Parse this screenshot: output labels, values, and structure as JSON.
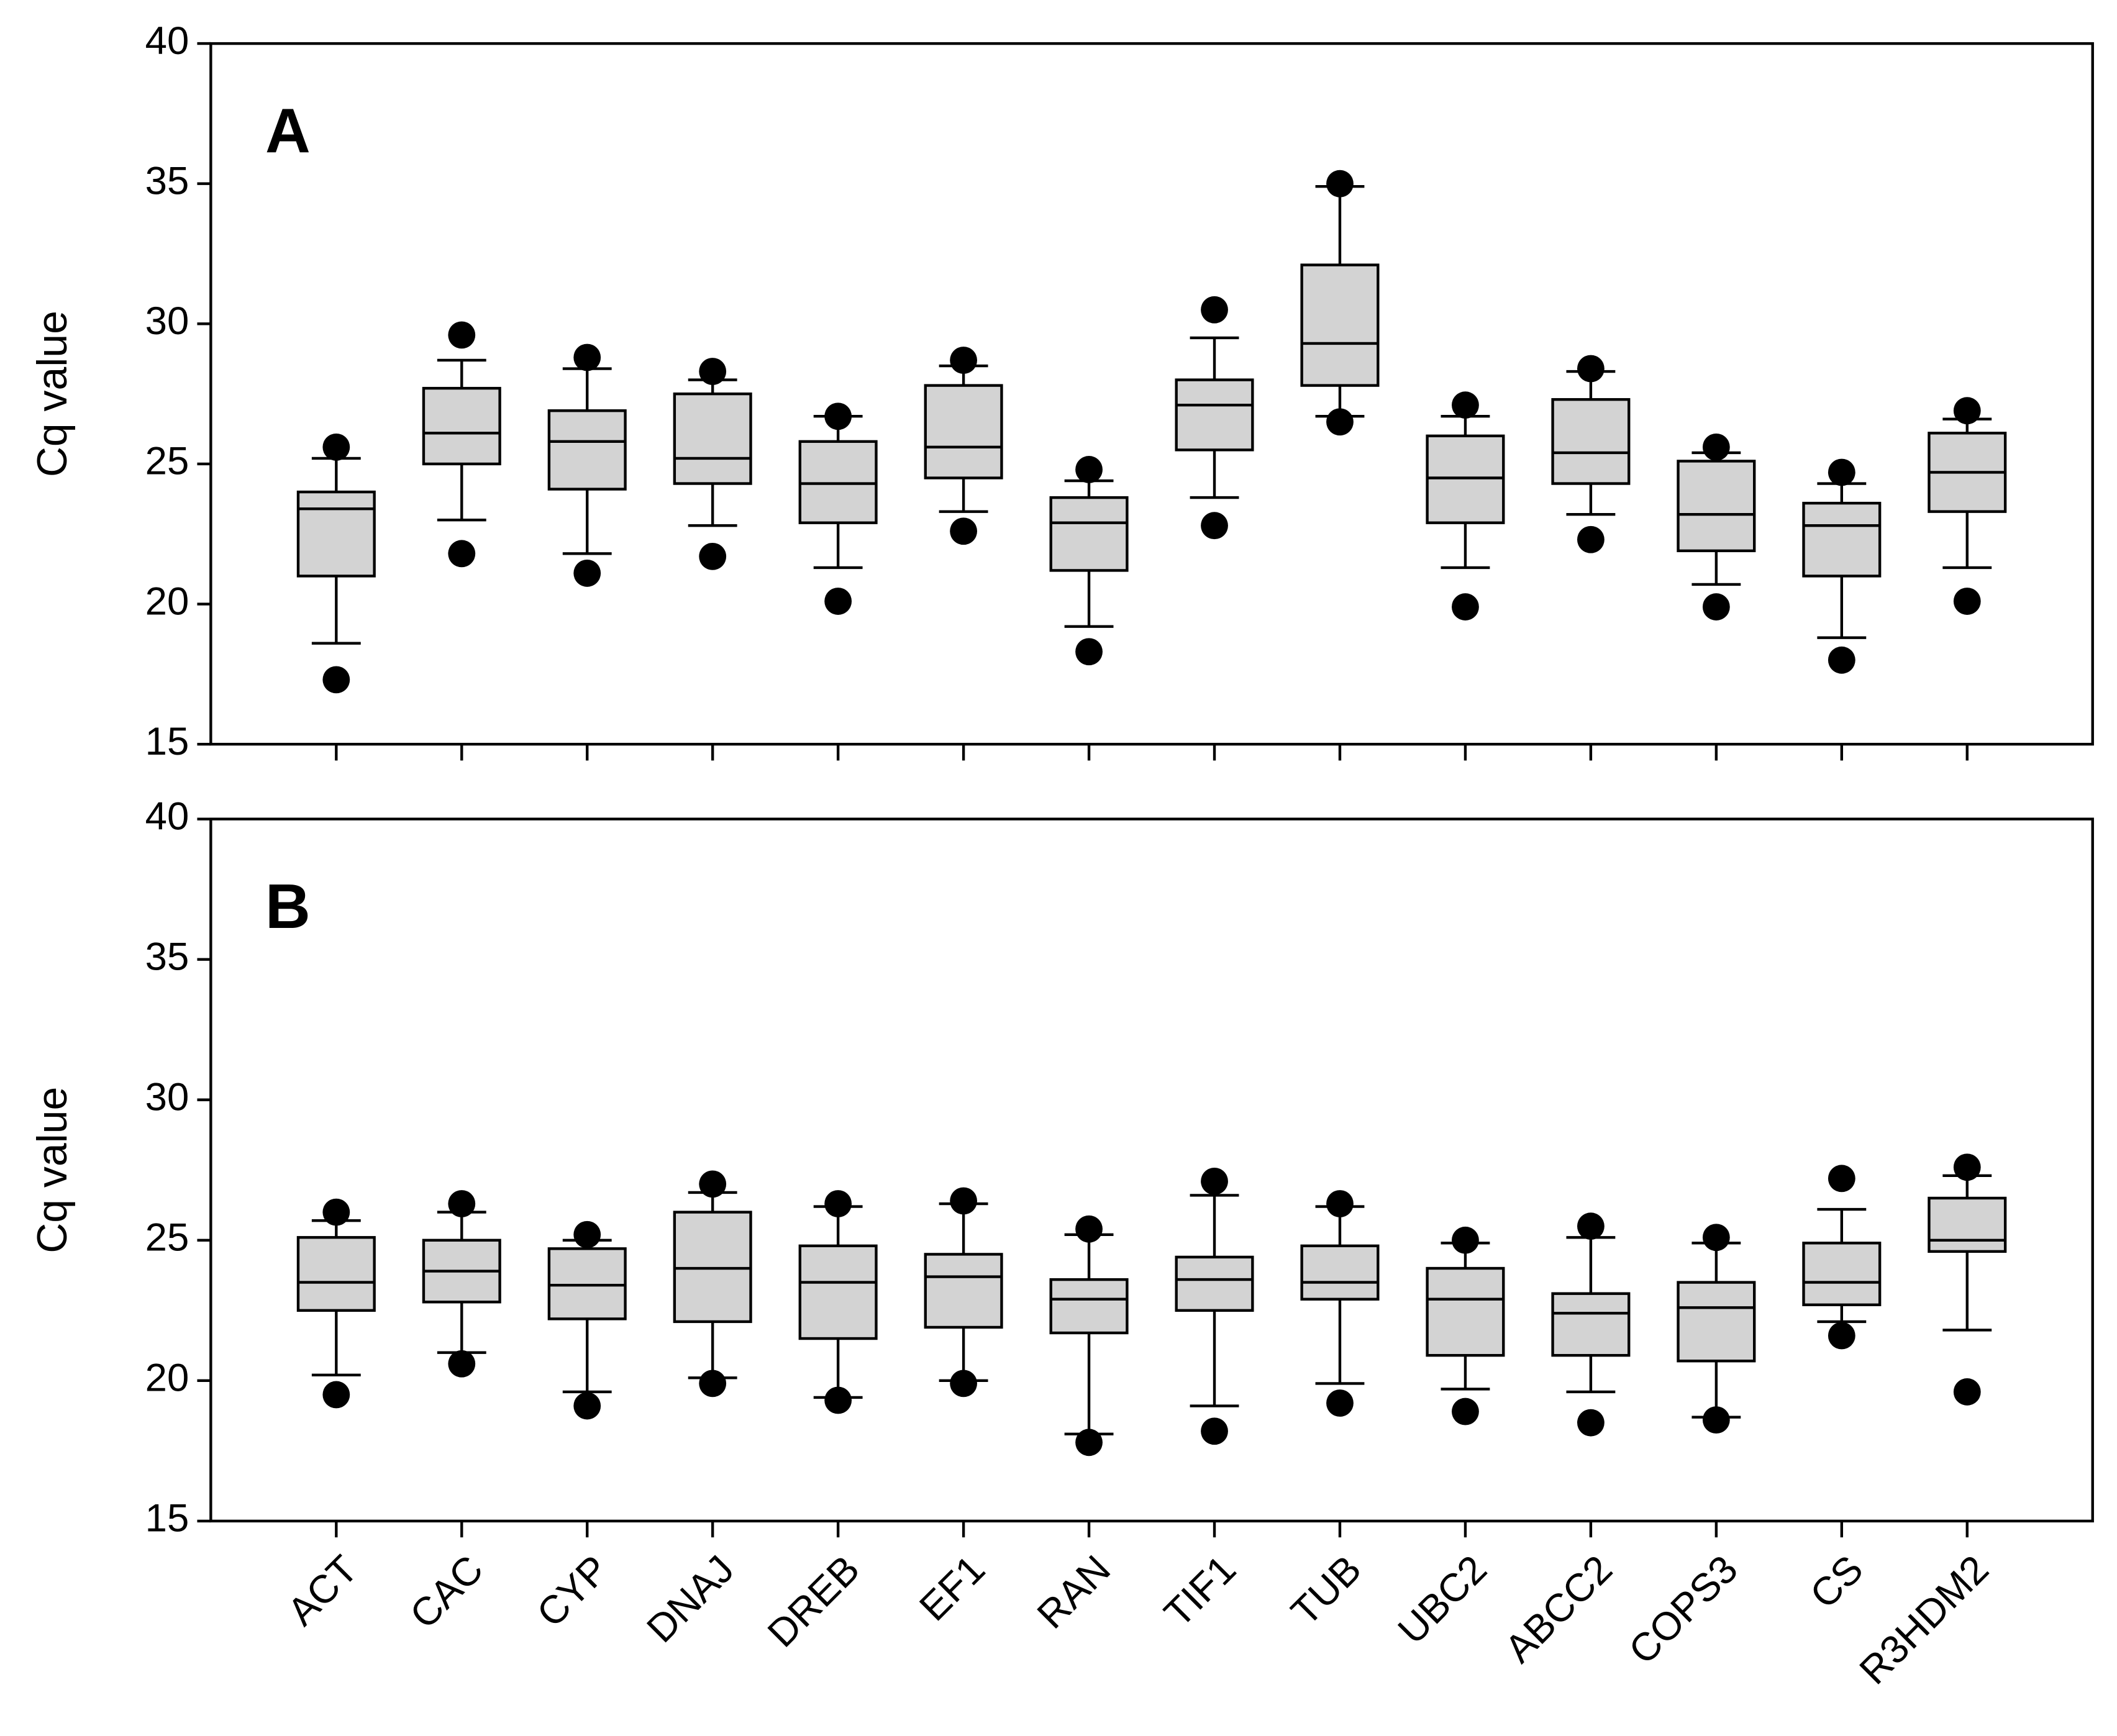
{
  "chart_data": [
    {
      "type": "box",
      "panel_label": "A",
      "ylabel": "Cq value",
      "ylim": [
        15,
        40
      ],
      "yticks": [
        15,
        20,
        25,
        30,
        35,
        40
      ],
      "box_color": "#d3d3d3",
      "dot_color": "#000000",
      "whisker_low": [
        18.6,
        23.0,
        21.8,
        22.8,
        21.3,
        23.3,
        19.2,
        23.8,
        26.7,
        21.3,
        23.2,
        20.7,
        18.8,
        21.3
      ],
      "q1": [
        21.0,
        25.0,
        24.1,
        24.3,
        22.9,
        24.5,
        21.2,
        25.5,
        27.8,
        22.9,
        24.3,
        21.9,
        21.0,
        23.3
      ],
      "median": [
        23.4,
        26.1,
        25.8,
        25.2,
        24.3,
        25.6,
        22.9,
        27.1,
        29.3,
        24.5,
        25.4,
        23.2,
        22.8,
        24.7
      ],
      "q3": [
        24.0,
        27.7,
        26.9,
        27.5,
        25.8,
        27.8,
        23.8,
        28.0,
        32.1,
        26.0,
        27.3,
        25.1,
        23.6,
        26.1
      ],
      "whisker_high": [
        25.2,
        28.7,
        28.4,
        28.0,
        26.7,
        28.5,
        24.4,
        29.5,
        34.9,
        26.7,
        28.3,
        25.4,
        24.3,
        26.6
      ],
      "outlier_low": [
        17.3,
        21.8,
        21.1,
        21.7,
        20.1,
        22.6,
        18.3,
        22.8,
        26.5,
        19.9,
        22.3,
        19.9,
        18.0,
        20.1
      ],
      "outlier_high": [
        25.6,
        29.6,
        28.8,
        28.3,
        26.7,
        28.7,
        24.8,
        30.5,
        35.0,
        27.1,
        28.4,
        25.6,
        24.7,
        26.9
      ]
    },
    {
      "type": "box",
      "panel_label": "B",
      "ylabel": "Cq value",
      "ylim": [
        15,
        40
      ],
      "yticks": [
        15,
        20,
        25,
        30,
        35,
        40
      ],
      "box_color": "#d3d3d3",
      "dot_color": "#000000",
      "categories": [
        "ACT",
        "CAC",
        "CYP",
        "DNAJ",
        "DREB",
        "EF1",
        "RAN",
        "TIF1",
        "TUB",
        "UBC2",
        "ABCC2",
        "COPS3",
        "CS",
        "R3HDM2"
      ],
      "whisker_low": [
        20.2,
        21.0,
        19.6,
        20.1,
        19.4,
        20.0,
        18.1,
        19.1,
        19.9,
        19.7,
        19.6,
        18.7,
        22.1,
        21.8
      ],
      "q1": [
        22.5,
        22.8,
        22.2,
        22.1,
        21.5,
        21.9,
        21.7,
        22.5,
        22.9,
        20.9,
        20.9,
        20.7,
        22.7,
        24.6
      ],
      "median": [
        23.5,
        23.9,
        23.4,
        24.0,
        23.5,
        23.7,
        22.9,
        23.6,
        23.5,
        22.9,
        22.4,
        22.6,
        23.5,
        25.0
      ],
      "q3": [
        25.1,
        25.0,
        24.7,
        26.0,
        24.8,
        24.5,
        23.6,
        24.4,
        24.8,
        24.0,
        23.1,
        23.5,
        24.9,
        26.5
      ],
      "whisker_high": [
        25.7,
        26.0,
        25.0,
        26.7,
        26.2,
        26.3,
        25.2,
        26.6,
        26.2,
        24.9,
        25.1,
        24.9,
        26.1,
        27.3
      ],
      "outlier_low": [
        19.5,
        20.6,
        19.1,
        19.9,
        19.3,
        19.9,
        17.8,
        18.2,
        19.2,
        18.9,
        18.5,
        18.6,
        21.6,
        19.6
      ],
      "outlier_high": [
        26.0,
        26.3,
        25.2,
        27.0,
        26.3,
        26.4,
        25.4,
        27.1,
        26.3,
        25.0,
        25.5,
        25.1,
        27.2,
        27.6
      ]
    }
  ]
}
